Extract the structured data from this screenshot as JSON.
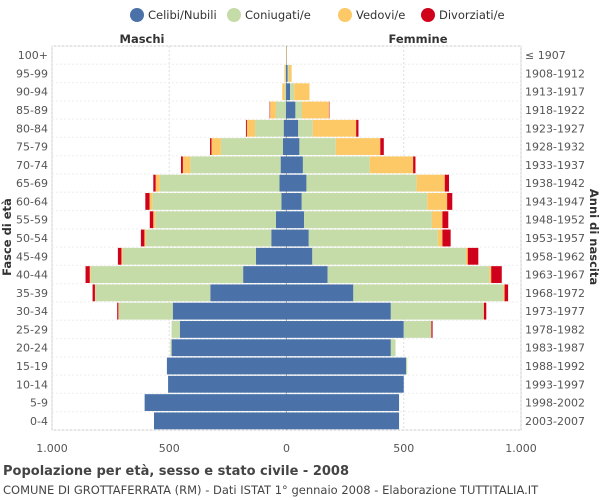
{
  "chart_data": {
    "type": "bar",
    "orientation": "horizontal",
    "title": "Popolazione per età, sesso e stato civile - 2008",
    "subtitle": "COMUNE DI GROTTAFERRATA (RM) - Dati ISTAT 1° gennaio 2008 - Elaborazione TUTTITALIA.IT",
    "left_header": "Maschi",
    "right_header": "Femmine",
    "ylabel_left": "Fasce di età",
    "ylabel_right": "Anni di nascita",
    "xlim": [
      -1000,
      1000
    ],
    "x_ticks": [
      -1000,
      -500,
      0,
      500,
      1000
    ],
    "x_tick_labels": [
      "1.000",
      "500",
      "0",
      "500",
      "1.000"
    ],
    "series_names": [
      "Celibi/Nubili",
      "Coniugati/e",
      "Vedovi/e",
      "Divorziati/e"
    ],
    "colors": [
      "#4a72a8",
      "#c5dba8",
      "#fdc966",
      "#d0021b"
    ],
    "age_groups": [
      "100+",
      "95-99",
      "90-94",
      "85-89",
      "80-84",
      "75-79",
      "70-74",
      "65-69",
      "60-64",
      "55-59",
      "50-54",
      "45-49",
      "40-44",
      "35-39",
      "30-34",
      "25-29",
      "20-24",
      "15-19",
      "10-14",
      "5-9",
      "0-4"
    ],
    "birth_years": [
      "≤ 1907",
      "1908-1912",
      "1913-1917",
      "1918-1922",
      "1923-1927",
      "1928-1932",
      "1933-1937",
      "1938-1942",
      "1943-1947",
      "1948-1952",
      "1953-1957",
      "1958-1962",
      "1963-1967",
      "1968-1972",
      "1973-1977",
      "1978-1982",
      "1983-1987",
      "1988-1992",
      "1993-1997",
      "1998-2002",
      "2003-2007"
    ],
    "males": {
      "Celibi/Nubili": [
        0,
        2,
        2,
        3,
        12,
        15,
        25,
        30,
        22,
        45,
        65,
        130,
        185,
        325,
        485,
        455,
        490,
        510,
        505,
        605,
        565
      ],
      "Coniugati/e": [
        0,
        3,
        6,
        42,
        122,
        265,
        385,
        510,
        550,
        515,
        535,
        570,
        650,
        490,
        230,
        35,
        5,
        0,
        0,
        0,
        0
      ],
      "Vedovi/e": [
        0,
        4,
        10,
        25,
        35,
        40,
        32,
        18,
        12,
        8,
        6,
        4,
        4,
        2,
        2,
        0,
        0,
        0,
        0,
        0,
        0
      ],
      "Divorziati/e": [
        0,
        0,
        0,
        2,
        4,
        6,
        8,
        10,
        18,
        15,
        15,
        15,
        18,
        10,
        5,
        0,
        0,
        0,
        0,
        0,
        0
      ]
    },
    "females": {
      "Celibi/Nubili": [
        0,
        5,
        15,
        38,
        50,
        55,
        70,
        85,
        65,
        75,
        95,
        110,
        175,
        285,
        445,
        500,
        445,
        510,
        500,
        480,
        480
      ],
      "Coniugati/e": [
        0,
        5,
        18,
        28,
        62,
        155,
        285,
        470,
        535,
        545,
        550,
        655,
        690,
        640,
        395,
        118,
        20,
        5,
        0,
        0,
        0
      ],
      "Vedovi/e": [
        2,
        12,
        65,
        115,
        185,
        190,
        185,
        120,
        85,
        45,
        20,
        8,
        8,
        5,
        2,
        0,
        0,
        0,
        0,
        0,
        0
      ],
      "Divorziati/e": [
        0,
        0,
        0,
        2,
        10,
        15,
        10,
        18,
        22,
        25,
        35,
        45,
        45,
        15,
        10,
        5,
        0,
        0,
        0,
        0,
        0
      ]
    }
  }
}
